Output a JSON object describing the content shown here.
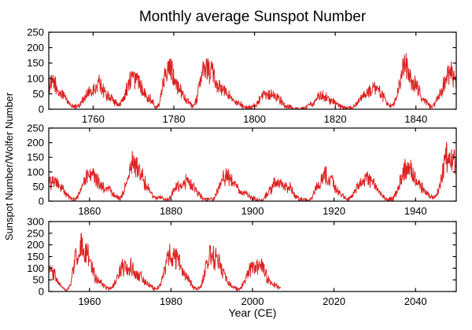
{
  "title": "Monthly average Sunspot Number",
  "xlabel": "Year (CE)",
  "ylabel": "Sunspot Number/Wolfer Number",
  "colors": {
    "line": "#dd2222",
    "axis": "#000000",
    "background": "#ffffff",
    "text": "#000000"
  },
  "chart_data": [
    {
      "type": "line",
      "panel": "top",
      "series_label": "monthly average sunspot number",
      "x_range": [
        1749,
        1850
      ],
      "y_range": [
        0,
        250
      ],
      "x_ticks": [
        1760,
        1780,
        1800,
        1820,
        1840
      ],
      "y_ticks": [
        0,
        50,
        100,
        150,
        200,
        250
      ],
      "grid": false,
      "legend": "none",
      "start_year": 1749,
      "annual_values": [
        81,
        83,
        48,
        48,
        31,
        12,
        10,
        10,
        32,
        48,
        54,
        63,
        86,
        61,
        45,
        36,
        21,
        11,
        38,
        70,
        106,
        101,
        82,
        67,
        35,
        31,
        7,
        20,
        93,
        154,
        126,
        85,
        68,
        39,
        23,
        10,
        24,
        83,
        132,
        131,
        118,
        90,
        67,
        60,
        47,
        41,
        21,
        16,
        6,
        4,
        7,
        15,
        34,
        45,
        43,
        48,
        42,
        28,
        10,
        8,
        3,
        0,
        1,
        5,
        12,
        14,
        35,
        46,
        41,
        30,
        24,
        16,
        7,
        4,
        2,
        9,
        17,
        36,
        50,
        64,
        67,
        71,
        48,
        28,
        9,
        13,
        57,
        122,
        138,
        103,
        86,
        65,
        37,
        24,
        11,
        15,
        40,
        62,
        98,
        125,
        96,
        66
      ]
    },
    {
      "type": "line",
      "panel": "middle",
      "series_label": "monthly average sunspot number",
      "x_range": [
        1850,
        1950
      ],
      "y_range": [
        0,
        250
      ],
      "x_ticks": [
        1860,
        1880,
        1900,
        1920,
        1940
      ],
      "y_ticks": [
        0,
        50,
        100,
        150,
        200,
        250
      ],
      "grid": false,
      "legend": "none",
      "start_year": 1850,
      "annual_values": [
        66,
        65,
        54,
        39,
        21,
        7,
        4,
        23,
        55,
        94,
        96,
        77,
        59,
        44,
        47,
        31,
        16,
        7,
        38,
        74,
        139,
        111,
        102,
        66,
        45,
        17,
        11,
        12,
        3,
        6,
        32,
        54,
        60,
        64,
        64,
        52,
        25,
        13,
        7,
        6,
        7,
        36,
        73,
        85,
        78,
        64,
        42,
        26,
        27,
        12,
        10,
        3,
        5,
        24,
        42,
        64,
        54,
        62,
        49,
        44,
        19,
        6,
        4,
        1,
        10,
        47,
        57,
        104,
        81,
        64,
        38,
        26,
        14,
        6,
        17,
        44,
        64,
        69,
        78,
        65,
        36,
        21,
        11,
        6,
        9,
        36,
        80,
        114,
        110,
        89,
        68,
        48,
        31,
        16,
        10,
        33,
        93,
        152,
        136,
        135,
        84
      ]
    },
    {
      "type": "line",
      "panel": "bottom",
      "series_label": "monthly average sunspot number",
      "x_range": [
        1950,
        2050
      ],
      "y_range": [
        0,
        300
      ],
      "x_ticks": [
        1960,
        1980,
        2000,
        2020,
        2040
      ],
      "y_ticks": [
        0,
        50,
        100,
        150,
        200,
        250,
        300
      ],
      "grid": false,
      "legend": "none",
      "start_year": 1950,
      "annual_values": [
        84,
        69,
        31,
        14,
        4,
        38,
        142,
        190,
        185,
        159,
        112,
        54,
        38,
        28,
        10,
        15,
        47,
        94,
        106,
        106,
        104,
        67,
        69,
        38,
        34,
        16,
        13,
        28,
        93,
        155,
        155,
        140,
        116,
        67,
        46,
        18,
        13,
        29,
        100,
        158,
        143,
        146,
        94,
        55,
        30,
        18,
        9,
        22,
        64,
        93,
        120,
        111,
        104,
        64,
        40,
        30,
        15
      ]
    }
  ]
}
